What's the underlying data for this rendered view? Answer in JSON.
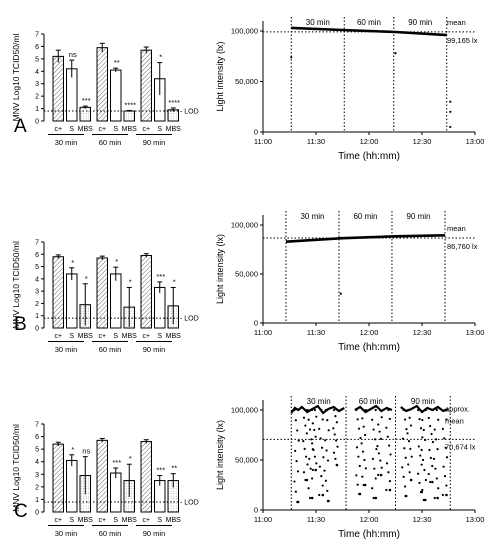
{
  "chart_data": [
    {
      "panel": "A",
      "type": "bar",
      "section": "bars",
      "ylabel": "MNV Log10 TCID50/ml",
      "ylim": [
        0,
        7
      ],
      "yticks": [
        "0",
        "1",
        "2",
        "3",
        "4",
        "5",
        "6",
        "7"
      ],
      "bar_labels": [
        "c+",
        "S",
        "MBS"
      ],
      "lod_label": "LOD",
      "lod_value": 0.8,
      "groups": [
        {
          "label": "30 min",
          "values": [
            5.2,
            4.2,
            1.1
          ],
          "errors": [
            0.5,
            0.7,
            0.1
          ],
          "stars": [
            "",
            "ns",
            "***"
          ]
        },
        {
          "label": "60 min",
          "values": [
            5.9,
            4.1,
            0.8
          ],
          "errors": [
            0.35,
            0.15,
            0.05
          ],
          "stars": [
            "",
            "**",
            "****"
          ]
        },
        {
          "label": "90 min",
          "values": [
            5.7,
            3.4,
            0.9
          ],
          "errors": [
            0.25,
            1.3,
            0.15
          ],
          "stars": [
            "",
            "*",
            "****"
          ]
        }
      ]
    },
    {
      "panel": "A",
      "type": "line",
      "section": "light",
      "xlabel": "Time (hh:mm)",
      "ylabel": "Light intensity (lx)",
      "ylim": [
        0,
        100000
      ],
      "yticks": [
        "0",
        "50,000",
        "100,000"
      ],
      "xticks": [
        "11:00",
        "11:30",
        "12:00",
        "12:30",
        "13:00"
      ],
      "interval_labels": [
        "30 min",
        "60 min",
        "90 min"
      ],
      "interval_bounds": [
        "11:16",
        "11:46",
        "12:14",
        "12:44"
      ],
      "mean_label": "mean",
      "mean_value_label": "99,165 lx",
      "mean": 99165,
      "series": [
        {
          "x": [
            "11:16",
            "11:45",
            "12:15",
            "12:44"
          ],
          "y": [
            103000,
            101000,
            99000,
            96000
          ]
        }
      ],
      "outliers": [
        {
          "x": "11:16",
          "y": 74000
        },
        {
          "x": "12:15",
          "y": 78000
        },
        {
          "x": "12:46",
          "y": 30000
        },
        {
          "x": "12:46",
          "y": 20000
        },
        {
          "x": "12:46",
          "y": 5000
        }
      ]
    },
    {
      "panel": "B",
      "type": "bar",
      "section": "bars",
      "ylabel": "MNV Log10 TCID50/ml",
      "ylim": [
        0,
        7
      ],
      "yticks": [
        "0",
        "1",
        "2",
        "3",
        "4",
        "5",
        "6",
        "7"
      ],
      "bar_labels": [
        "c+",
        "S",
        "MBS"
      ],
      "lod_label": "LOD",
      "lod_value": 0.8,
      "groups": [
        {
          "label": "30 min",
          "values": [
            5.8,
            4.4,
            1.9
          ],
          "errors": [
            0.15,
            0.5,
            1.7
          ],
          "stars": [
            "",
            "*",
            "*"
          ]
        },
        {
          "label": "60 min",
          "values": [
            5.7,
            4.4,
            1.7
          ],
          "errors": [
            0.15,
            0.55,
            1.6
          ],
          "stars": [
            "",
            "*",
            "*"
          ]
        },
        {
          "label": "90 min",
          "values": [
            5.9,
            3.3,
            1.8
          ],
          "errors": [
            0.15,
            0.45,
            1.5
          ],
          "stars": [
            "",
            "***",
            "*"
          ]
        }
      ]
    },
    {
      "panel": "B",
      "type": "line",
      "section": "light",
      "xlabel": "Time (hh:mm)",
      "ylabel": "Light intensity (lx)",
      "ylim": [
        0,
        100000
      ],
      "yticks": [
        "0",
        "50,000",
        "100,000"
      ],
      "xticks": [
        "11:00",
        "11:30",
        "12:00",
        "12:30",
        "13:00"
      ],
      "interval_labels": [
        "30 min",
        "60 min",
        "90 min"
      ],
      "interval_bounds": [
        "11:13",
        "11:43",
        "12:13",
        "12:43"
      ],
      "mean_label": "mean",
      "mean_value_label": "86,760 lx",
      "mean": 86760,
      "series": [
        {
          "x": [
            "11:13",
            "11:45",
            "12:15",
            "12:43"
          ],
          "y": [
            83000,
            86500,
            88500,
            89500
          ]
        }
      ],
      "outliers": [
        {
          "x": "11:44",
          "y": 30000
        }
      ]
    },
    {
      "panel": "C",
      "type": "bar",
      "section": "bars",
      "ylabel": "MNV Log10 TCID50/ml",
      "ylim": [
        0,
        7
      ],
      "yticks": [
        "0",
        "1",
        "2",
        "3",
        "4",
        "5",
        "6",
        "7"
      ],
      "bar_labels": [
        "c+",
        "S",
        "MBS"
      ],
      "lod_label": "LOD",
      "lod_value": 0.8,
      "groups": [
        {
          "label": "30 min",
          "values": [
            5.4,
            4.1,
            2.9
          ],
          "errors": [
            0.15,
            0.45,
            1.5
          ],
          "stars": [
            "",
            "*",
            "ns"
          ]
        },
        {
          "label": "60 min",
          "values": [
            5.7,
            3.1,
            2.5
          ],
          "errors": [
            0.15,
            0.4,
            1.3
          ],
          "stars": [
            "",
            "***",
            "*"
          ]
        },
        {
          "label": "90 min",
          "values": [
            5.6,
            2.5,
            2.5
          ],
          "errors": [
            0.15,
            0.4,
            0.55
          ],
          "stars": [
            "",
            "***",
            "**"
          ]
        }
      ]
    },
    {
      "panel": "C",
      "type": "scatter",
      "section": "light",
      "xlabel": "Time (hh:mm)",
      "ylabel": "Light intensity (lx)",
      "ylim": [
        0,
        100000
      ],
      "yticks": [
        "0",
        "50,000",
        "100,000"
      ],
      "xticks": [
        "11:00",
        "11:30",
        "12:00",
        "12:30",
        "13:00"
      ],
      "interval_labels": [
        "30 min",
        "60 min",
        "90 min"
      ],
      "interval_bounds": [
        "11:16",
        "11:47",
        "12:15",
        "12:46"
      ],
      "mean_label": "approx. mean",
      "mean_value_label": "70,674 lx",
      "mean": 70674,
      "top_profile": [
        [
          "11:16",
          97000
        ],
        [
          "11:18",
          102000
        ],
        [
          "11:20",
          100000
        ],
        [
          "11:22",
          103000
        ],
        [
          "11:25",
          98000
        ],
        [
          "11:28",
          101000
        ],
        [
          "11:31",
          104000
        ],
        [
          "11:34",
          97000
        ],
        [
          "11:37",
          101000
        ],
        [
          "11:40",
          103000
        ],
        [
          "11:43",
          99000
        ],
        [
          "11:46",
          102000
        ],
        [
          "11:52",
          100000
        ],
        [
          "11:55",
          103000
        ],
        [
          "11:58",
          98000
        ],
        [
          "12:01",
          101000
        ],
        [
          "12:04",
          104000
        ],
        [
          "12:07",
          99000
        ],
        [
          "12:10",
          102000
        ],
        [
          "12:13",
          100000
        ],
        [
          "12:18",
          103000
        ],
        [
          "12:21",
          99000
        ],
        [
          "12:24",
          101000
        ],
        [
          "12:27",
          104000
        ],
        [
          "12:30",
          98000
        ],
        [
          "12:33",
          102000
        ],
        [
          "12:36",
          100000
        ],
        [
          "12:39",
          103000
        ],
        [
          "12:42",
          99000
        ],
        [
          "12:45",
          101000
        ]
      ],
      "dips": [
        [
          "11:19",
          8000
        ],
        [
          "11:24",
          30000
        ],
        [
          "11:27",
          12000
        ],
        [
          "11:29",
          40000
        ],
        [
          "11:33",
          15000
        ],
        [
          "11:36",
          9000
        ],
        [
          "11:41",
          45000
        ],
        [
          "11:54",
          16000
        ],
        [
          "11:57",
          25000
        ],
        [
          "12:03",
          12000
        ],
        [
          "12:06",
          35000
        ],
        [
          "12:11",
          20000
        ],
        [
          "12:20",
          14000
        ],
        [
          "12:23",
          30000
        ],
        [
          "12:29",
          18000
        ],
        [
          "12:31",
          10000
        ],
        [
          "12:35",
          28000
        ],
        [
          "12:38",
          12000
        ],
        [
          "12:43",
          15000
        ]
      ]
    }
  ]
}
